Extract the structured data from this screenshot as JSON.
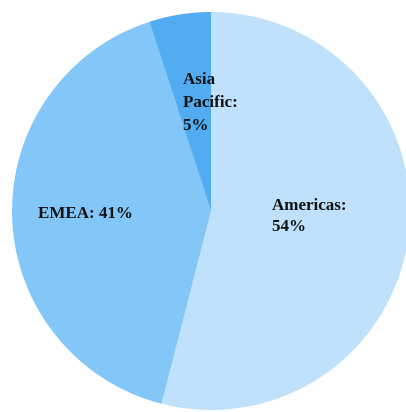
{
  "chart_data": {
    "type": "pie",
    "title": "",
    "slices": [
      {
        "name": "Americas",
        "label_lines": [
          "Americas:",
          "54%"
        ],
        "value": 54,
        "color": "#bfe1fb"
      },
      {
        "name": "EMEA",
        "label_lines": [
          "EMEA: 41%"
        ],
        "value": 41,
        "color": "#83c6f8"
      },
      {
        "name": "Asia Pacific",
        "label_lines": [
          "Asia",
          "Pacific:",
          "5%"
        ],
        "value": 5,
        "color": "#52acf2"
      }
    ],
    "start_angle": "12 o'clock",
    "direction": "clockwise",
    "legend": "none"
  }
}
